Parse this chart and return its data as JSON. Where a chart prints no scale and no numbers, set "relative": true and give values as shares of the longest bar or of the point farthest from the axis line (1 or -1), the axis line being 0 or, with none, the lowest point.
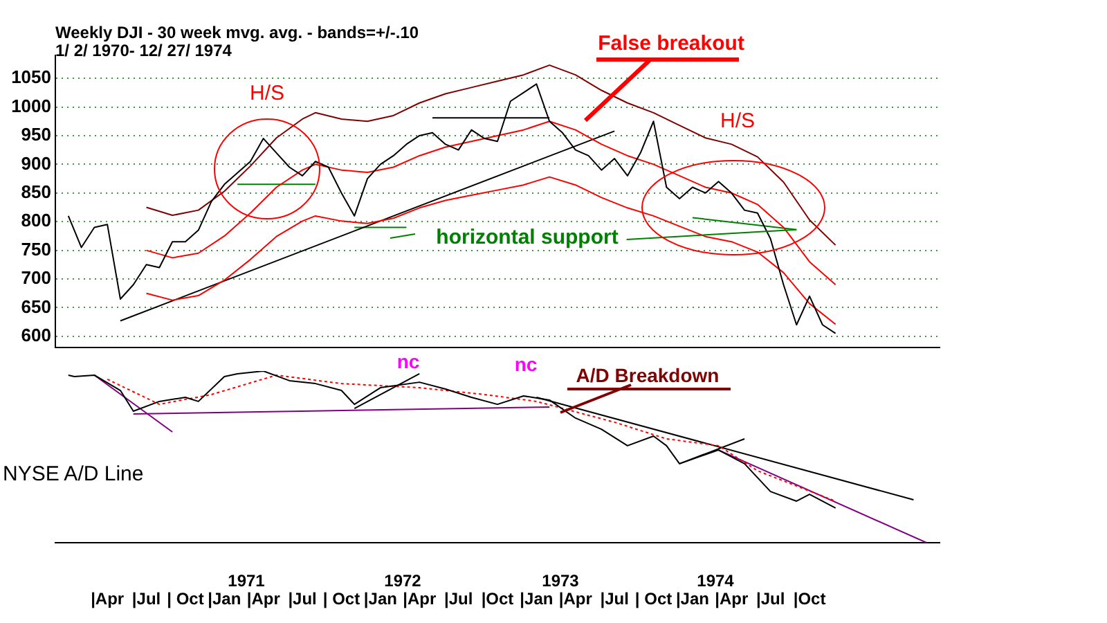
{
  "chart_data": [
    {
      "type": "line",
      "title": "Weekly DJI - 30 week mvg. avg. - bands=+/-.10",
      "subtitle": "1/ 2/ 1970- 12/ 27/ 1974",
      "x": [
        "1970-01",
        "1970-02",
        "1970-03",
        "1970-04",
        "1970-05",
        "1970-06",
        "1970-07",
        "1970-08",
        "1970-09",
        "1970-10",
        "1970-11",
        "1970-12",
        "1971-01",
        "1971-02",
        "1971-03",
        "1971-04",
        "1971-05",
        "1971-06",
        "1971-07",
        "1971-08",
        "1971-09",
        "1971-10",
        "1971-11",
        "1971-12",
        "1972-01",
        "1972-02",
        "1972-03",
        "1972-04",
        "1972-05",
        "1972-06",
        "1972-07",
        "1972-08",
        "1972-09",
        "1972-10",
        "1972-11",
        "1972-12",
        "1973-01",
        "1973-02",
        "1973-03",
        "1973-04",
        "1973-05",
        "1973-06",
        "1973-07",
        "1973-08",
        "1973-09",
        "1973-10",
        "1973-11",
        "1973-12",
        "1974-01",
        "1974-02",
        "1974-03",
        "1974-04",
        "1974-05",
        "1974-06",
        "1974-07",
        "1974-08",
        "1974-09",
        "1974-10",
        "1974-11",
        "1974-12"
      ],
      "xlim": [
        "1969-12",
        "1975-08"
      ],
      "ylim": [
        580,
        1090
      ],
      "yticks": [
        600,
        650,
        700,
        750,
        800,
        850,
        900,
        950,
        1000,
        1050
      ],
      "grid": "y",
      "tick_labels": "y",
      "series": [
        {
          "color": "#000000",
          "values": [
            810,
            755,
            790,
            795,
            665,
            690,
            725,
            720,
            765,
            765,
            785,
            835,
            865,
            885,
            905,
            945,
            920,
            895,
            880,
            905,
            895,
            850,
            810,
            875,
            900,
            915,
            935,
            950,
            955,
            935,
            925,
            960,
            945,
            940,
            1010,
            1025,
            1040,
            975,
            955,
            925,
            915,
            890,
            910,
            880,
            920,
            975,
            860,
            840,
            860,
            850,
            870,
            850,
            820,
            815,
            770,
            690,
            620,
            670,
            620,
            605
          ]
        },
        {
          "color": "#ff0000",
          "x": [
            "1970-07",
            "1970-09",
            "1970-11",
            "1971-01",
            "1971-03",
            "1971-05",
            "1971-07",
            "1971-08",
            "1971-10",
            "1971-12",
            "1972-02",
            "1972-04",
            "1972-06",
            "1972-08",
            "1972-10",
            "1972-12",
            "1973-02",
            "1973-04",
            "1973-06",
            "1973-08",
            "1973-10",
            "1973-12",
            "1974-02",
            "1974-04",
            "1974-06",
            "1974-08",
            "1974-10",
            "1974-12"
          ],
          "values": [
            750,
            737,
            745,
            775,
            815,
            860,
            890,
            900,
            890,
            886,
            895,
            915,
            930,
            940,
            950,
            960,
            975,
            960,
            935,
            915,
            900,
            880,
            860,
            850,
            830,
            790,
            730,
            690
          ]
        },
        {
          "color": "#800000",
          "x": [
            "1970-07",
            "1970-09",
            "1970-11",
            "1971-01",
            "1971-03",
            "1971-05",
            "1971-07",
            "1971-08",
            "1971-10",
            "1971-12",
            "1972-02",
            "1972-04",
            "1972-06",
            "1972-08",
            "1972-10",
            "1972-12",
            "1973-02",
            "1973-04",
            "1973-06",
            "1973-08",
            "1973-10",
            "1973-12",
            "1974-02",
            "1974-04",
            "1974-06",
            "1974-08",
            "1974-10",
            "1974-12"
          ],
          "values": [
            825,
            811,
            820,
            853,
            897,
            946,
            979,
            990,
            979,
            975,
            985,
            1007,
            1023,
            1034,
            1045,
            1056,
            1073,
            1056,
            1029,
            1007,
            990,
            968,
            946,
            935,
            913,
            869,
            803,
            759
          ]
        },
        {
          "color": "#ff0000",
          "x": [
            "1970-07",
            "1970-09",
            "1970-11",
            "1971-01",
            "1971-03",
            "1971-05",
            "1971-07",
            "1971-08",
            "1971-10",
            "1971-12",
            "1972-02",
            "1972-04",
            "1972-06",
            "1972-08",
            "1972-10",
            "1972-12",
            "1973-02",
            "1973-04",
            "1973-06",
            "1973-08",
            "1973-10",
            "1973-12",
            "1974-02",
            "1974-04",
            "1974-06",
            "1974-08",
            "1974-10",
            "1974-12"
          ],
          "values": [
            675,
            663,
            671,
            698,
            734,
            774,
            801,
            810,
            801,
            797,
            806,
            824,
            837,
            846,
            855,
            864,
            878,
            864,
            842,
            824,
            810,
            792,
            774,
            765,
            747,
            711,
            657,
            621
          ]
        },
        {
          "type": "line",
          "color": "#000000",
          "x": [
            "1970-05",
            "1973-07"
          ],
          "values": [
            627,
            958
          ]
        },
        {
          "type": "line",
          "color": "#000000",
          "x": [
            "1972-05",
            "1973-02"
          ],
          "values": [
            981,
            981
          ]
        },
        {
          "type": "line",
          "color": "#008000",
          "x": [
            "1971-02",
            "1971-08"
          ],
          "values": [
            865,
            865
          ]
        },
        {
          "type": "line",
          "color": "#008000",
          "x": [
            "1971-11",
            "1972-03"
          ],
          "values": [
            790,
            790
          ]
        },
        {
          "type": "line",
          "color": "#008000",
          "x": [
            "1974-01",
            "1974-09"
          ],
          "values": [
            807,
            786
          ]
        }
      ],
      "annotations": [
        "H/S",
        "False breakout",
        "H/S",
        {
          "text": "horizontal support",
          "x": "1974-09",
          "y": 786
        }
      ]
    },
    {
      "type": "line",
      "relative": true,
      "ylabel": "NYSE A/D Line",
      "xlim": [
        "1969-12",
        "1975-08"
      ],
      "tick_labels": "x",
      "xticks": [
        {
          "value": "1970-04",
          "label": "|Apr"
        },
        {
          "value": "1970-07",
          "label": "|Jul"
        },
        {
          "value": "1970-10",
          "label": "| Oct"
        },
        {
          "value": "1971-01",
          "label": "|Jan"
        },
        {
          "value": "1971-04",
          "label": "|Apr"
        },
        {
          "value": "1971-07",
          "label": "|Jul"
        },
        {
          "value": "1971-10",
          "label": "| Oct"
        },
        {
          "value": "1972-01",
          "label": "|Jan"
        },
        {
          "value": "1972-04",
          "label": "|Apr"
        },
        {
          "value": "1972-07",
          "label": "|Jul"
        },
        {
          "value": "1972-10",
          "label": "|Oct"
        },
        {
          "value": "1973-01",
          "label": "|Jan"
        },
        {
          "value": "1973-04",
          "label": "|Apr"
        },
        {
          "value": "1973-07",
          "label": "|Jul"
        },
        {
          "value": "1973-10",
          "label": "| Oct"
        },
        {
          "value": "1974-01",
          "label": "|Jan"
        },
        {
          "value": "1974-04",
          "label": "|Apr"
        },
        {
          "value": "1974-07",
          "label": "|Jul"
        },
        {
          "value": "1974-10",
          "label": "|Oct"
        }
      ],
      "series": [
        {
          "color": "#000000",
          "x": [
            "1970-01",
            "1970-01-15",
            "1970-03",
            "1970-05",
            "1970-06",
            "1970-08",
            "1970-10",
            "1970-11",
            "1971-01",
            "1971-02",
            "1971-04",
            "1971-06",
            "1971-08",
            "1971-10",
            "1971-11",
            "1972-01",
            "1972-04",
            "1972-06",
            "1972-08",
            "1972-10",
            "1972-12",
            "1973-02",
            "1973-04",
            "1973-06",
            "1973-08",
            "1973-10",
            "1973-11",
            "1973-12",
            "1974-03",
            "1974-05",
            "1974-07",
            "1974-09",
            "1974-10",
            "1974-12"
          ],
          "values": [
            0.976,
            0.968,
            0.976,
            0.887,
            0.766,
            0.823,
            0.847,
            0.823,
            0.968,
            0.984,
            1,
            0.944,
            0.927,
            0.887,
            0.806,
            0.903,
            0.935,
            0.895,
            0.847,
            0.806,
            0.855,
            0.831,
            0.726,
            0.661,
            0.565,
            0.621,
            0.565,
            0.46,
            0.54,
            0.46,
            0.298,
            0.242,
            0.282,
            0.202
          ]
        },
        {
          "color": "#ff0000",
          "line_style": "dotted",
          "x": [
            "1970-04",
            "1970-08",
            "1970-12",
            "1971-05",
            "1971-10",
            "1972-04",
            "1972-09",
            "1973-01",
            "1973-07",
            "1973-11",
            "1974-03",
            "1974-06",
            "1974-12"
          ],
          "values": [
            0.952,
            0.806,
            0.863,
            0.976,
            0.927,
            0.903,
            0.863,
            0.823,
            0.702,
            0.605,
            0.565,
            0.419,
            0.242
          ]
        },
        {
          "type": "line",
          "color": "#800080",
          "x": [
            "1970-06",
            "1973-02"
          ],
          "values": [
            0.75,
            0.79
          ]
        },
        {
          "type": "line",
          "color": "#800080",
          "x": [
            "1970-03",
            "1970-09"
          ],
          "values": [
            0.976,
            0.645
          ]
        },
        {
          "type": "line",
          "color": "#000000",
          "x": [
            "1971-11",
            "1972-04"
          ],
          "values": [
            0.782,
            0.984
          ]
        },
        {
          "type": "line",
          "color": "#000000",
          "x": [
            "1973-01",
            "1975-06"
          ],
          "values": [
            0.847,
            0.25
          ]
        },
        {
          "type": "line",
          "color": "#800080",
          "x": [
            "1974-03",
            "1975-07"
          ],
          "values": [
            0.54,
            0
          ]
        },
        {
          "type": "line",
          "color": "#000000",
          "x": [
            "1973-12",
            "1974-05"
          ],
          "values": [
            0.46,
            0.605
          ]
        }
      ],
      "annotations": [
        "nc",
        "nc",
        "A/D Breakdown",
        "1971",
        "1972",
        "1973",
        "1974"
      ]
    }
  ]
}
